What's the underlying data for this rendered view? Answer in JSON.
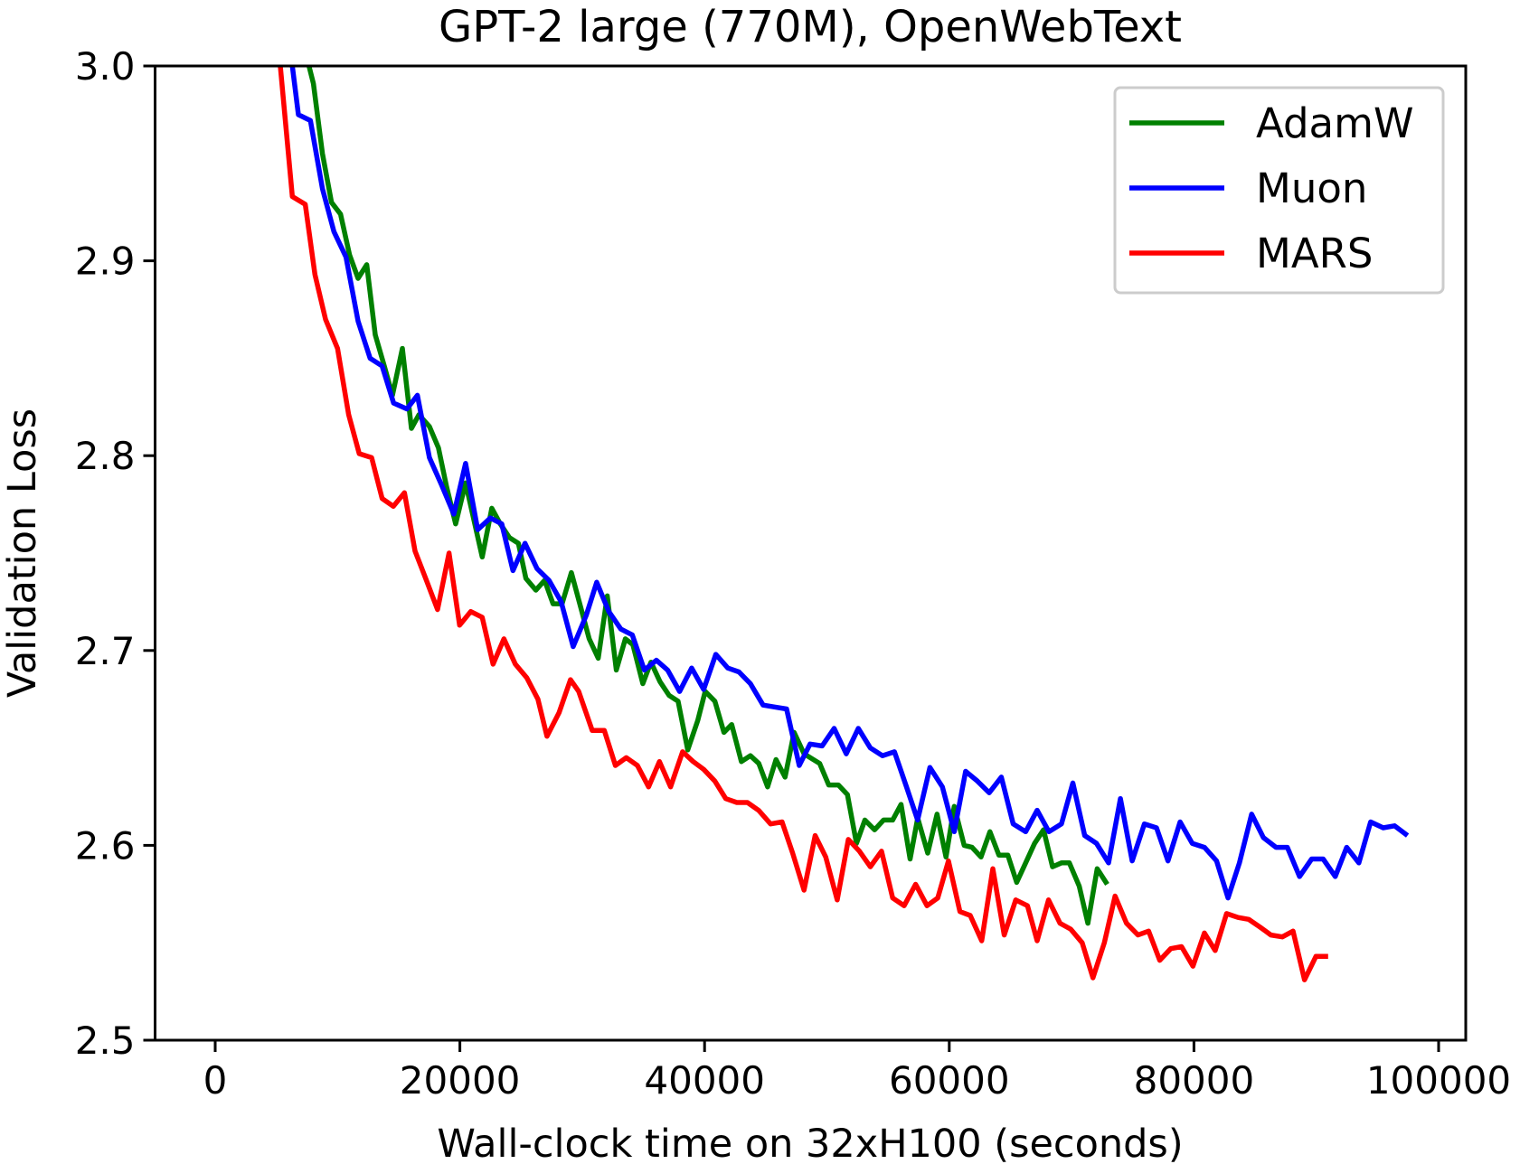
{
  "chart_data": {
    "type": "line",
    "title": "GPT-2 large (770M), OpenWebText",
    "xlabel": "Wall-clock time on 32xH100 (seconds)",
    "ylabel": "Validation Loss",
    "xlim": [
      -4915,
      102217
    ],
    "ylim": [
      2.5,
      3.0
    ],
    "xticks": [
      0,
      20000,
      40000,
      60000,
      80000,
      100000
    ],
    "xtick_labels": [
      "0",
      "20000",
      "40000",
      "60000",
      "80000",
      "100000"
    ],
    "yticks": [
      2.5,
      2.6,
      2.7,
      2.8,
      2.9,
      3.0
    ],
    "ytick_labels": [
      "2.5",
      "2.6",
      "2.7",
      "2.8",
      "2.9",
      "3.0"
    ],
    "grid": false,
    "legend_position": "top-right",
    "series": [
      {
        "name": "AdamW",
        "color": "#008000",
        "x": [
          7661,
          8030,
          8769,
          9508,
          10247,
          10986,
          11675,
          12390,
          13079,
          13818,
          14483,
          15296,
          16035,
          16650,
          17512,
          18251,
          18916,
          19655,
          20468,
          21823,
          22611,
          23301,
          24040,
          24779,
          25394,
          26207,
          26922,
          27611,
          28350,
          29114,
          30570,
          31309,
          32048,
          32787,
          33526,
          34141,
          34954,
          35619,
          36358,
          37097,
          37836,
          38624,
          39437,
          40053,
          40841,
          41580,
          42220,
          43008,
          43747,
          44437,
          45151,
          45841,
          46580,
          47319,
          48131,
          49412,
          50151,
          50939,
          51678,
          52417,
          53107,
          53895,
          54634,
          55372,
          56062,
          56801,
          57422,
          58241,
          59000,
          59731,
          60403,
          61221,
          61864,
          62594,
          63325,
          64055,
          64786,
          65516,
          66247,
          66977,
          67708,
          68438,
          69169,
          69812,
          70630,
          71331,
          72091,
          72909
        ],
        "y": [
          3.0,
          2.991,
          2.955,
          2.93,
          2.924,
          2.903,
          2.891,
          2.898,
          2.862,
          2.846,
          2.831,
          2.855,
          2.814,
          2.821,
          2.815,
          2.804,
          2.784,
          2.765,
          2.786,
          2.748,
          2.773,
          2.765,
          2.758,
          2.755,
          2.737,
          2.731,
          2.736,
          2.724,
          2.724,
          2.74,
          2.706,
          2.696,
          2.728,
          2.69,
          2.706,
          2.703,
          2.683,
          2.694,
          2.684,
          2.677,
          2.674,
          2.649,
          2.664,
          2.679,
          2.674,
          2.658,
          2.662,
          2.643,
          2.646,
          2.642,
          2.63,
          2.644,
          2.635,
          2.658,
          2.647,
          2.642,
          2.631,
          2.631,
          2.626,
          2.601,
          2.613,
          2.608,
          2.613,
          2.613,
          2.621,
          2.593,
          2.614,
          2.596,
          2.616,
          2.594,
          2.62,
          2.6,
          2.599,
          2.594,
          2.607,
          2.595,
          2.595,
          2.581,
          2.591,
          2.601,
          2.608,
          2.589,
          2.591,
          2.591,
          2.579,
          2.56,
          2.588,
          2.58
        ]
      },
      {
        "name": "Muon",
        "color": "#0000ff",
        "x": [
          6306,
          6799,
          7784,
          8769,
          9705,
          10690,
          11675,
          12660,
          13646,
          14582,
          15666,
          16528,
          17512,
          18498,
          19508,
          20468,
          21454,
          22488,
          23424,
          24335,
          25320,
          26306,
          27291,
          28276,
          29261,
          30324,
          31186,
          32171,
          33156,
          34092,
          35077,
          36063,
          36974,
          37959,
          38944,
          39929,
          40915,
          41900,
          42811,
          43747,
          44782,
          45718,
          46703,
          47737,
          48624,
          49609,
          50594,
          51579,
          52565,
          53550,
          54535,
          55520,
          56505,
          57416,
          58416,
          59439,
          60403,
          61338,
          62302,
          63266,
          64260,
          65224,
          66247,
          67182,
          68146,
          69169,
          70104,
          71068,
          72032,
          73026,
          73990,
          74955,
          75948,
          76941,
          77876,
          78870,
          79863,
          80857,
          81850,
          82785,
          83721,
          84714,
          85678,
          86701,
          87636,
          88629,
          89623,
          90558,
          91551,
          92486,
          93480,
          94444,
          95467,
          96402,
          97454
        ],
        "y": [
          3.0,
          2.975,
          2.972,
          2.937,
          2.915,
          2.902,
          2.869,
          2.85,
          2.846,
          2.827,
          2.824,
          2.831,
          2.799,
          2.785,
          2.77,
          2.796,
          2.762,
          2.768,
          2.765,
          2.741,
          2.755,
          2.742,
          2.736,
          2.725,
          2.702,
          2.718,
          2.735,
          2.72,
          2.711,
          2.708,
          2.69,
          2.695,
          2.69,
          2.679,
          2.691,
          2.68,
          2.698,
          2.691,
          2.689,
          2.683,
          2.672,
          2.671,
          2.67,
          2.641,
          2.652,
          2.651,
          2.66,
          2.647,
          2.66,
          2.65,
          2.646,
          2.648,
          2.63,
          2.613,
          2.64,
          2.63,
          2.607,
          2.638,
          2.633,
          2.627,
          2.635,
          2.611,
          2.607,
          2.618,
          2.607,
          2.611,
          2.632,
          2.605,
          2.601,
          2.591,
          2.624,
          2.592,
          2.611,
          2.609,
          2.592,
          2.612,
          2.601,
          2.599,
          2.592,
          2.573,
          2.591,
          2.616,
          2.604,
          2.599,
          2.599,
          2.584,
          2.593,
          2.593,
          2.584,
          2.599,
          2.591,
          2.612,
          2.609,
          2.61,
          2.605
        ]
      },
      {
        "name": "MARS",
        "color": "#ff0000",
        "x": [
          5321,
          6306,
          7365,
          8153,
          9015,
          10001,
          10912,
          11774,
          12784,
          13646,
          14557,
          15468,
          16331,
          17266,
          18177,
          19114,
          19976,
          20887,
          21823,
          22710,
          23596,
          24532,
          25468,
          26379,
          27119,
          28100,
          29040,
          29708,
          30816,
          31802,
          32713,
          33600,
          34511,
          35422,
          36309,
          37220,
          38205,
          39067,
          39929,
          40841,
          41727,
          42639,
          43501,
          44412,
          45397,
          46333,
          47195,
          48131,
          49042,
          49904,
          50840,
          51752,
          52663,
          53550,
          54461,
          55372,
          56312,
          57247,
          58182,
          59059,
          59935,
          60870,
          61718,
          62653,
          63559,
          64494,
          65429,
          66393,
          67182,
          68117,
          69052,
          69929,
          70864,
          71741,
          72676,
          73553,
          74487,
          75423,
          76299,
          77205,
          78110,
          78987,
          79922,
          80857,
          81734,
          82669,
          83604,
          84481,
          85416,
          86292,
          87227,
          88103,
          89038,
          89973,
          90966
        ],
        "y": [
          3.0,
          2.933,
          2.929,
          2.893,
          2.87,
          2.855,
          2.821,
          2.801,
          2.799,
          2.778,
          2.774,
          2.781,
          2.751,
          2.736,
          2.721,
          2.75,
          2.713,
          2.72,
          2.717,
          2.693,
          2.706,
          2.693,
          2.686,
          2.675,
          2.656,
          2.668,
          2.685,
          2.679,
          2.659,
          2.659,
          2.641,
          2.645,
          2.641,
          2.63,
          2.643,
          2.63,
          2.648,
          2.643,
          2.639,
          2.633,
          2.624,
          2.622,
          2.622,
          2.618,
          2.611,
          2.612,
          2.596,
          2.577,
          2.605,
          2.594,
          2.572,
          2.603,
          2.597,
          2.589,
          2.597,
          2.573,
          2.569,
          2.58,
          2.569,
          2.573,
          2.592,
          2.566,
          2.564,
          2.551,
          2.588,
          2.554,
          2.572,
          2.569,
          2.551,
          2.572,
          2.56,
          2.557,
          2.55,
          2.532,
          2.55,
          2.574,
          2.56,
          2.554,
          2.556,
          2.541,
          2.547,
          2.548,
          2.538,
          2.555,
          2.546,
          2.565,
          2.563,
          2.562,
          2.558,
          2.554,
          2.553,
          2.556,
          2.531,
          2.543,
          2.543
        ]
      }
    ]
  }
}
